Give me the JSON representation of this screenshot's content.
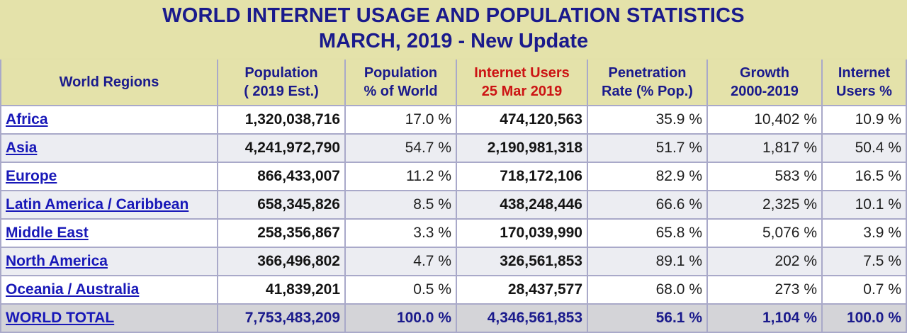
{
  "title": {
    "line1": "WORLD INTERNET USAGE AND POPULATION STATISTICS",
    "line2": "MARCH, 2019 - New Update"
  },
  "columns": {
    "region": "World Regions",
    "pop_a": "Population",
    "pop_b": "( 2019 Est.)",
    "pct_a": "Population",
    "pct_b": "% of World",
    "users_a": "Internet Users",
    "users_b": "25 Mar 2019",
    "pen_a": "Penetration",
    "pen_b": "Rate (% Pop.)",
    "growth_a": "Growth",
    "growth_b": "2000-2019",
    "share_a": "Internet",
    "share_b": "Users %"
  },
  "rows": [
    {
      "region": "Africa",
      "population": "1,320,038,716",
      "pct_world": "17.0 %",
      "users": "474,120,563",
      "penetration": "35.9 %",
      "growth": "10,402 %",
      "share": "10.9 %"
    },
    {
      "region": "Asia",
      "population": "4,241,972,790",
      "pct_world": "54.7 %",
      "users": "2,190,981,318",
      "penetration": "51.7 %",
      "growth": "1,817 %",
      "share": "50.4 %"
    },
    {
      "region": "Europe",
      "population": "866,433,007",
      "pct_world": "11.2 %",
      "users": "718,172,106",
      "penetration": "82.9 %",
      "growth": "583 %",
      "share": "16.5 %"
    },
    {
      "region": "Latin America / Caribbean",
      "population": "658,345,826",
      "pct_world": "8.5 %",
      "users": "438,248,446",
      "penetration": "66.6 %",
      "growth": "2,325 %",
      "share": "10.1 %"
    },
    {
      "region": "Middle East",
      "population": "258,356,867",
      "pct_world": "3.3 %",
      "users": "170,039,990",
      "penetration": "65.8 %",
      "growth": "5,076 %",
      "share": "3.9 %"
    },
    {
      "region": "North America",
      "population": "366,496,802",
      "pct_world": "4.7 %",
      "users": "326,561,853",
      "penetration": "89.1 %",
      "growth": "202 %",
      "share": "7.5 %"
    },
    {
      "region": "Oceania / Australia",
      "population": "41,839,201",
      "pct_world": "0.5 %",
      "users": "28,437,577",
      "penetration": "68.0 %",
      "growth": "273 %",
      "share": "0.7 %"
    }
  ],
  "total": {
    "region": "WORLD TOTAL",
    "population": "7,753,483,209",
    "pct_world": "100.0 %",
    "users": "4,346,561,853",
    "penetration": "56.1 %",
    "growth": "1,104 %",
    "share": "100.0 %"
  },
  "colors": {
    "header_text": "#1a1a8c",
    "highlight_header": "#cc1414",
    "link": "#1818b8",
    "header_bg": "#e4e2aa"
  }
}
